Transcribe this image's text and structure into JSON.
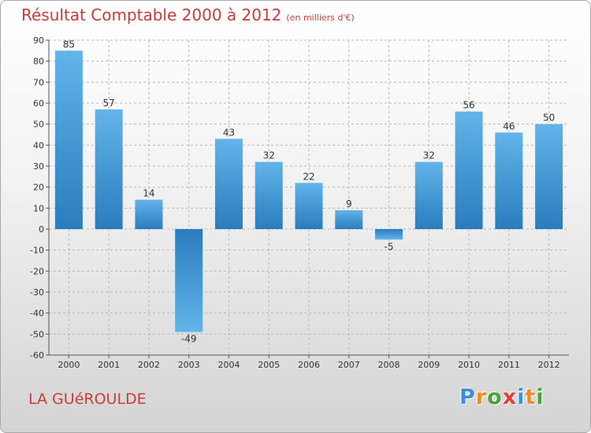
{
  "title": "Résultat Comptable 2000 à 2012",
  "subtitle": "(en milliers d'€)",
  "town": "LA GUéROULDE",
  "brand": {
    "letters": [
      "P",
      "r",
      "o",
      "x",
      "i",
      "t",
      "i"
    ],
    "colors": [
      "#3a8fd6",
      "#f08c1a",
      "#4aa23c",
      "#e23c3c",
      "#3a8fd6",
      "#f08c1a",
      "#4aa23c"
    ]
  },
  "colors": {
    "bar_top": "#62b4ea",
    "bar_bottom": "#2a7cbd",
    "grid": "#b8b8b8",
    "axis": "#555555",
    "text": "#333333",
    "title": "#cc3a3a"
  },
  "chart_data": {
    "type": "bar",
    "title": "Résultat Comptable 2000 à 2012",
    "subtitle": "(en milliers d'€)",
    "xlabel": "",
    "ylabel": "",
    "categories": [
      "2000",
      "2001",
      "2002",
      "2003",
      "2004",
      "2005",
      "2006",
      "2007",
      "2008",
      "2009",
      "2010",
      "2011",
      "2012"
    ],
    "values": [
      85,
      57,
      14,
      -49,
      43,
      32,
      22,
      9,
      -5,
      32,
      56,
      46,
      50
    ],
    "ylim": [
      -60,
      90
    ],
    "yticks": [
      90,
      80,
      70,
      60,
      50,
      40,
      30,
      20,
      10,
      0,
      -10,
      -20,
      -30,
      -40,
      -50,
      -60
    ],
    "grid": true
  }
}
